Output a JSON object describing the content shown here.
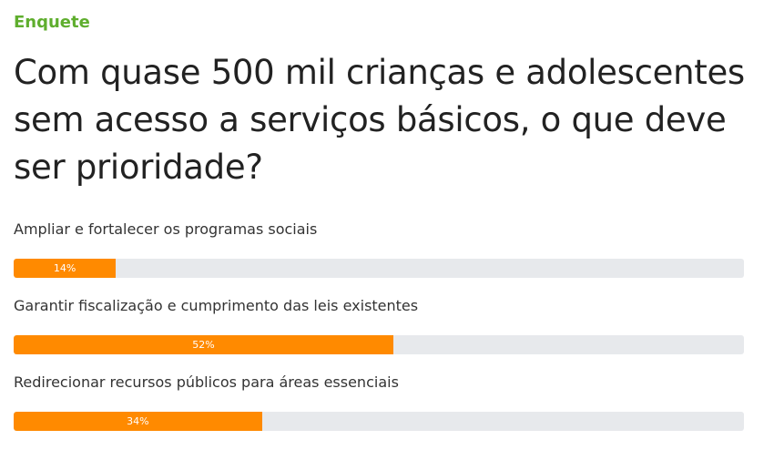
{
  "poll": {
    "eyebrow": "Enquete",
    "question": "Com quase 500 mil crianças e adolescentes sem acesso a serviços básicos, o que deve ser prioridade?",
    "bar_color": "#ff8a00",
    "track_color": "#e7e9ec",
    "eyebrow_color": "#5fae2e",
    "options": [
      {
        "label": "Ampliar e fortalecer os programas sociais",
        "percent": 14,
        "percent_label": "14%"
      },
      {
        "label": "Garantir fiscalização e cumprimento das leis existentes",
        "percent": 52,
        "percent_label": "52%"
      },
      {
        "label": "Redirecionar recursos públicos para áreas essenciais",
        "percent": 34,
        "percent_label": "34%"
      }
    ]
  }
}
